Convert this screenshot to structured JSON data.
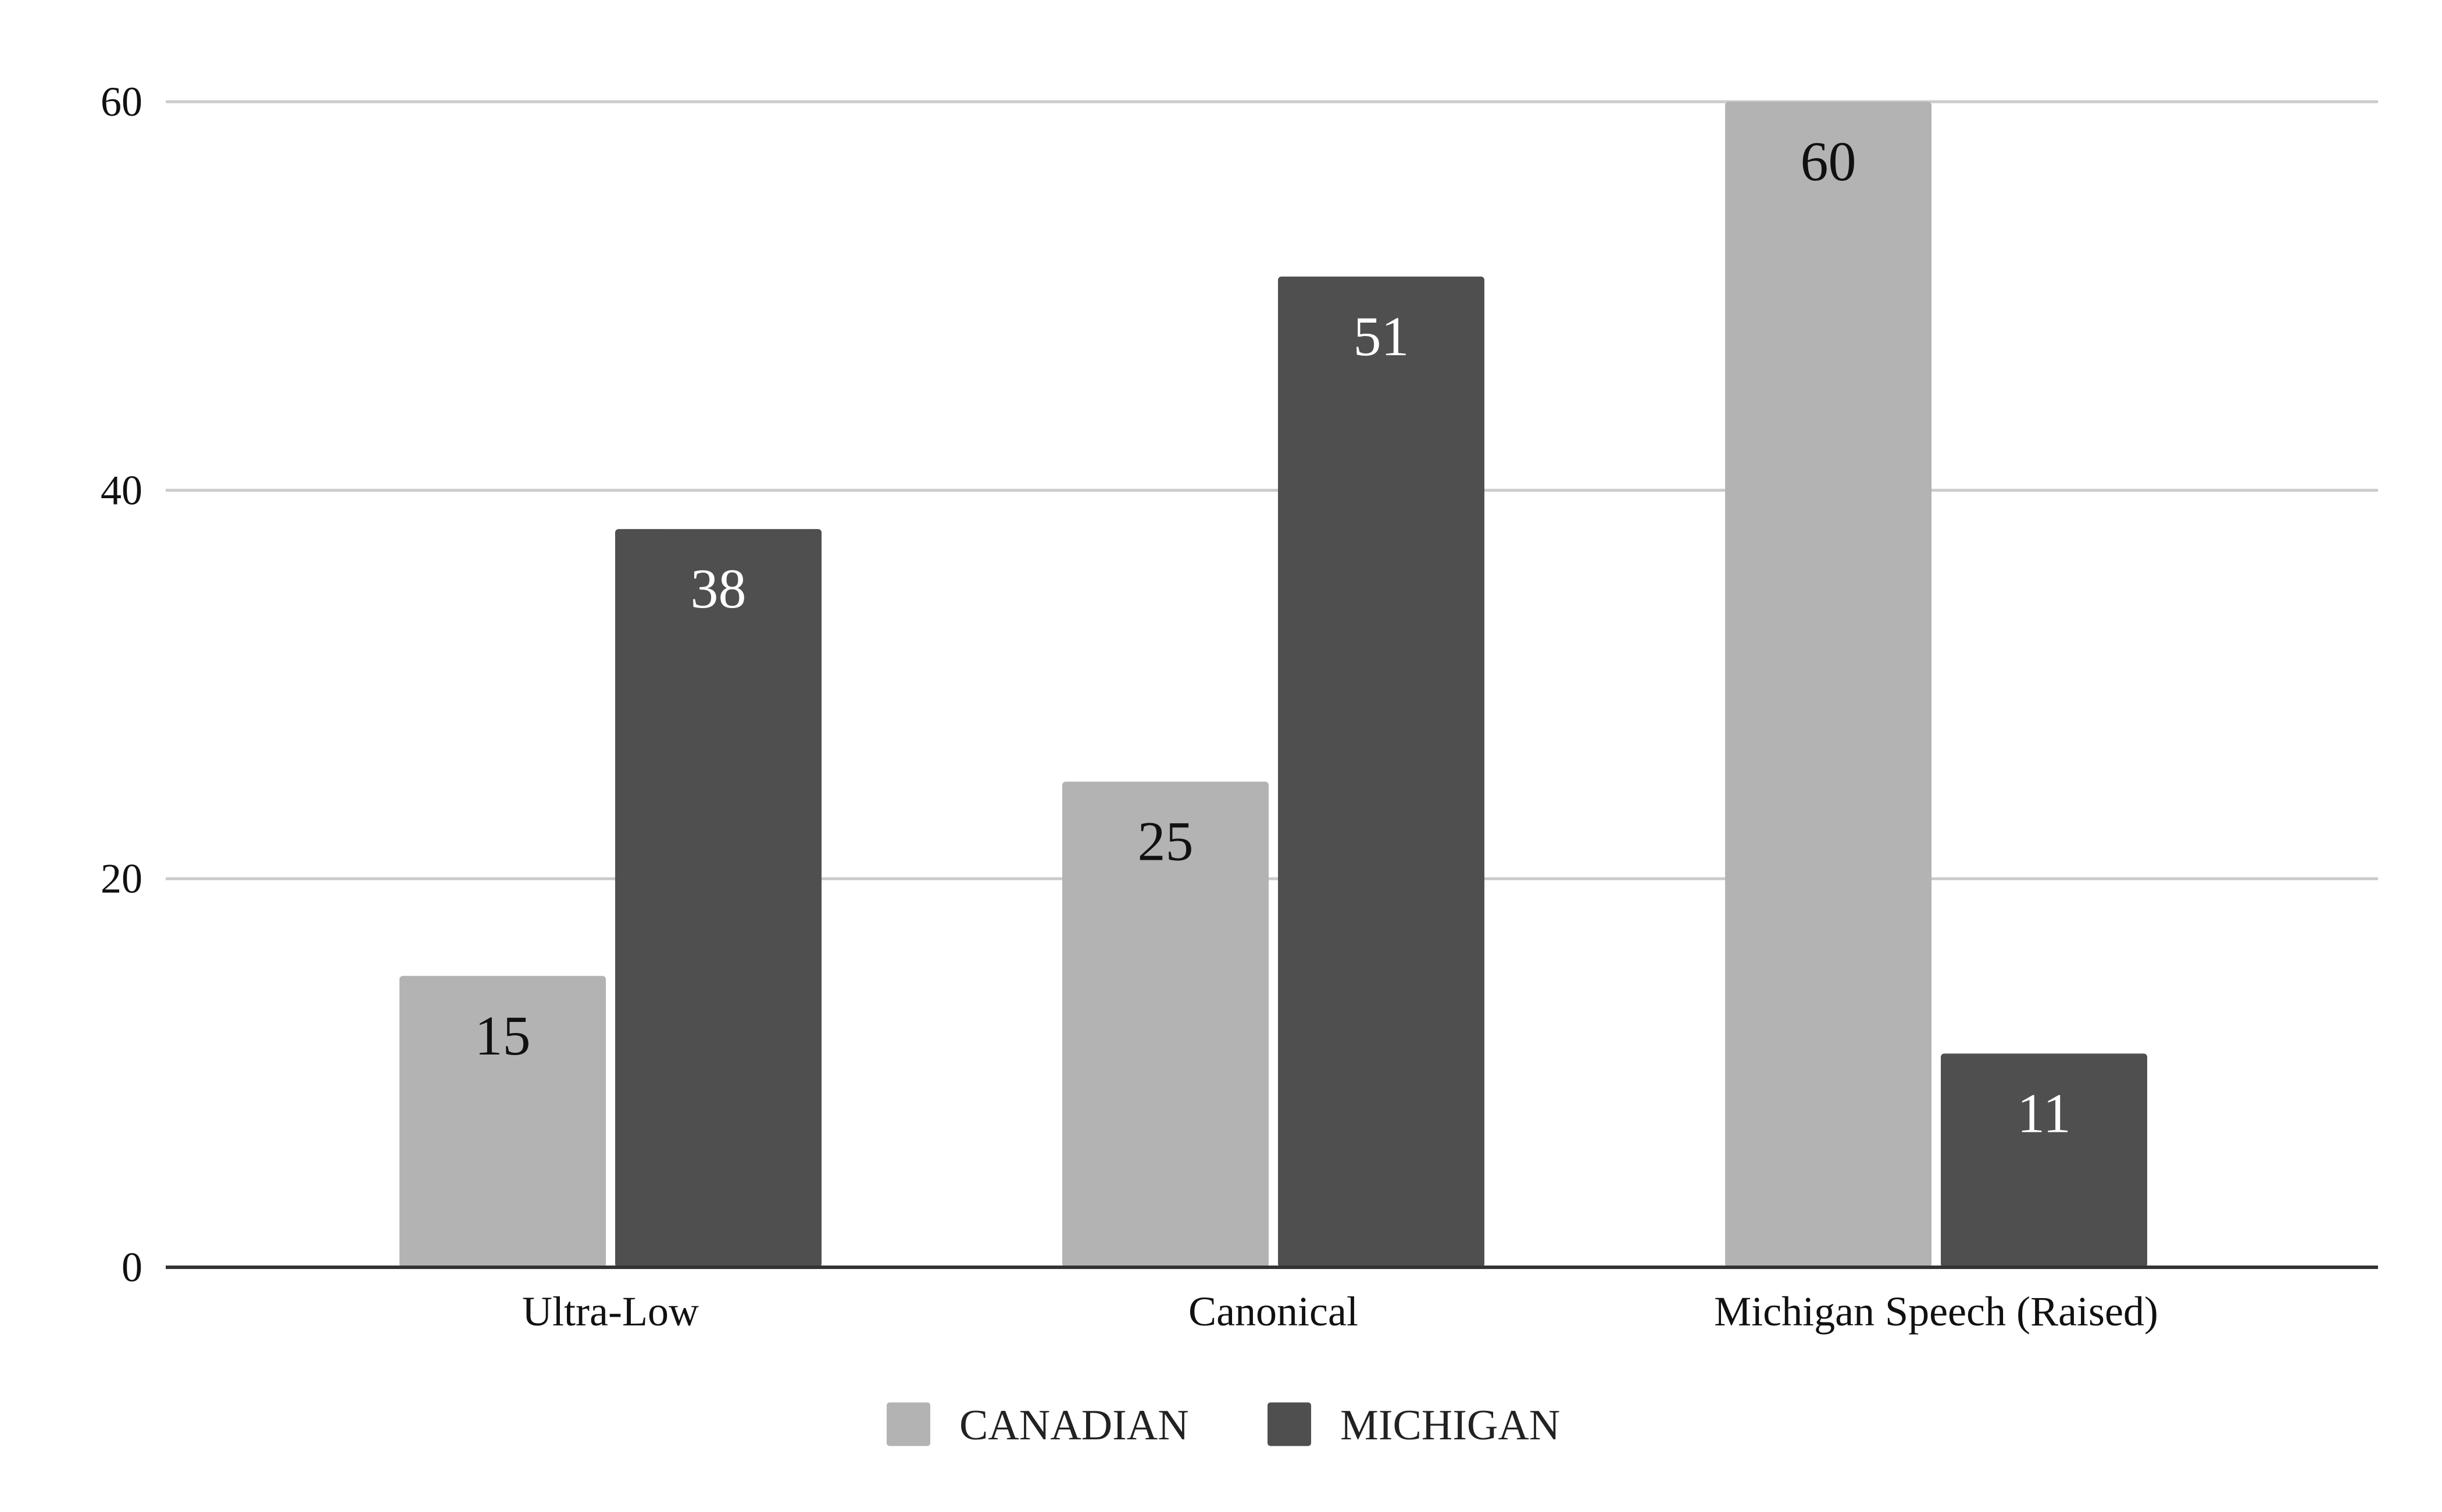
{
  "chart_data": {
    "type": "bar",
    "categories": [
      "Ultra-Low",
      "Canonical",
      "Michigan Speech (Raised)"
    ],
    "series": [
      {
        "name": "CANADIAN",
        "values": [
          15,
          25,
          60
        ],
        "color": "#b3b3b3",
        "label_color": "#111111"
      },
      {
        "name": "MICHIGAN",
        "values": [
          38,
          51,
          11
        ],
        "color": "#4f4f4f",
        "label_color": "#ffffff"
      }
    ],
    "ylim": [
      0,
      60
    ],
    "yticks": [
      0,
      20,
      40,
      60
    ],
    "grid": true,
    "data_labels": true,
    "legend": "bottom-center"
  }
}
